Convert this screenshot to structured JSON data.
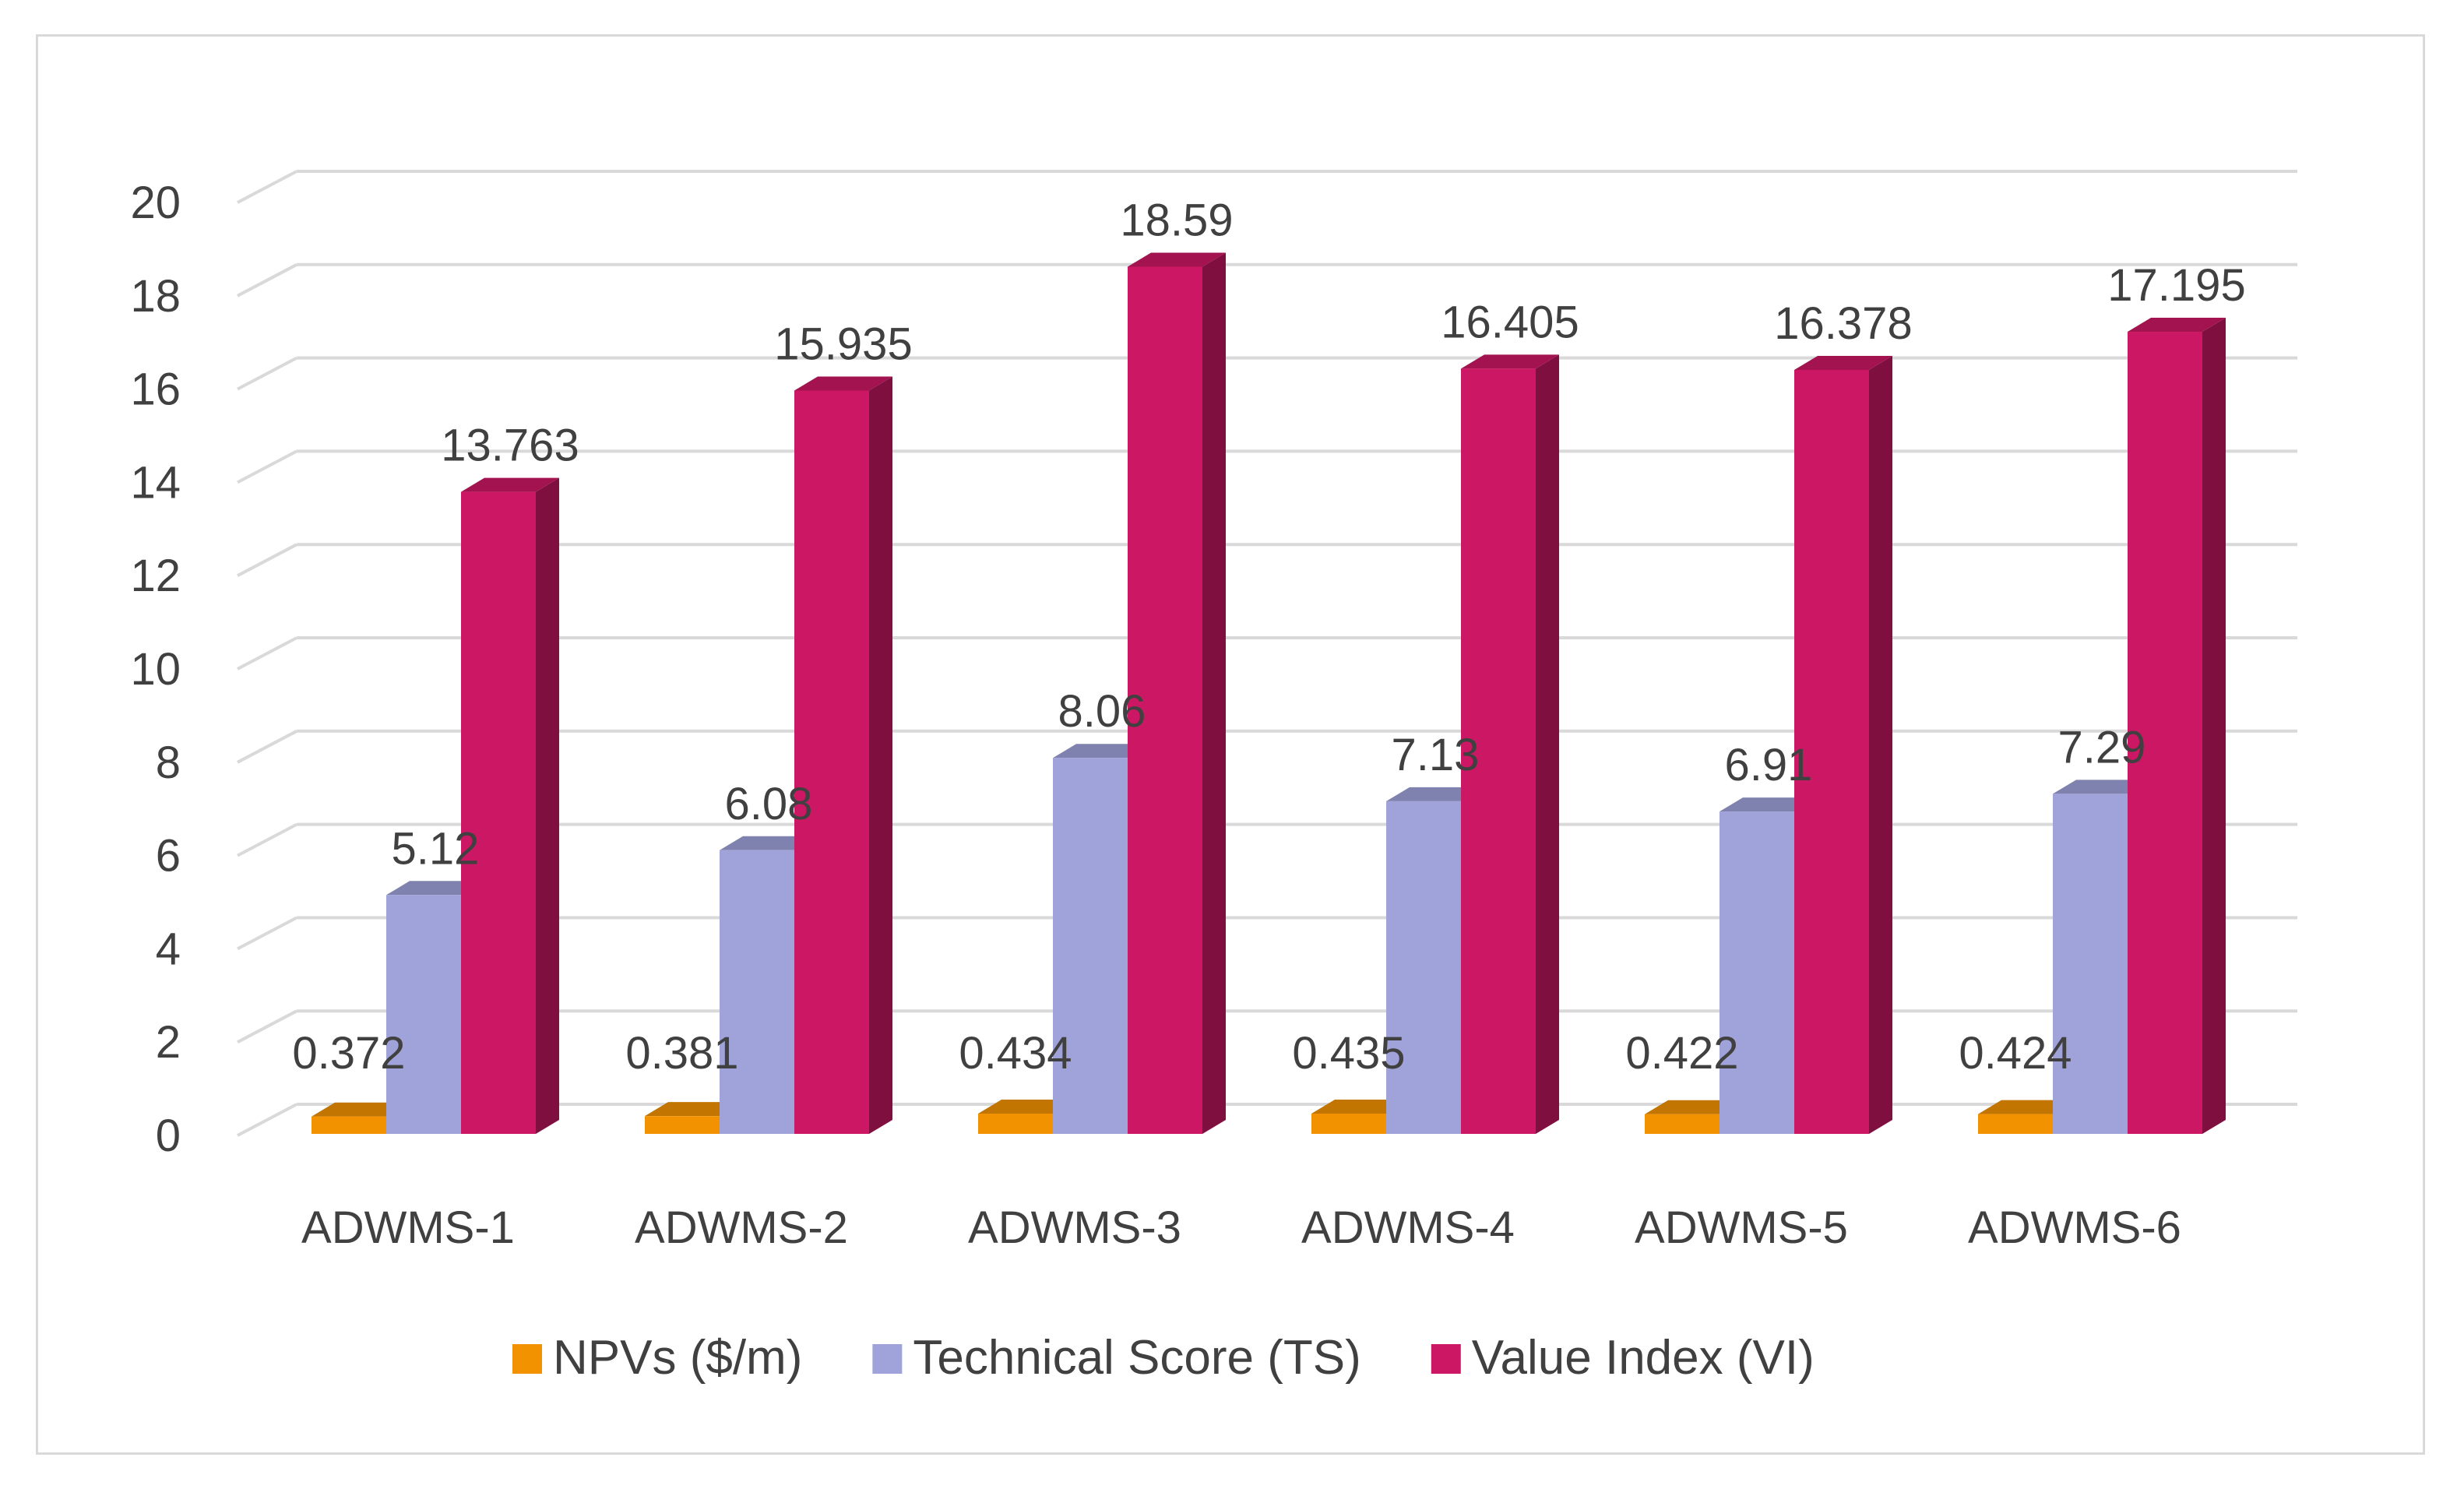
{
  "chart_data": {
    "type": "bar",
    "style": "3d-clustered-column",
    "title": "",
    "xlabel": "",
    "ylabel": "",
    "ylim": [
      0,
      20
    ],
    "ytick_step": 2,
    "grid": true,
    "legend_position": "bottom",
    "categories": [
      "ADWMS-1",
      "ADWMS-2",
      "ADWMS-3",
      "ADWMS-4",
      "ADWMS-5",
      "ADWMS-6"
    ],
    "yticks": [
      "0",
      "2",
      "4",
      "6",
      "8",
      "10",
      "12",
      "14",
      "16",
      "18",
      "20"
    ],
    "series": [
      {
        "name": "NPVs ($/m)",
        "color": "#f39200",
        "values": [
          0.372,
          0.381,
          0.434,
          0.435,
          0.422,
          0.424
        ],
        "labels": [
          "0.372",
          "0.381",
          "0.434",
          "0.435",
          "0.422",
          "0.424"
        ]
      },
      {
        "name": "Technical Score (TS)",
        "color": "#9fa3d9",
        "values": [
          5.12,
          6.08,
          8.06,
          7.13,
          6.91,
          7.29
        ],
        "labels": [
          "5.12",
          "6.08",
          "8.06",
          "7.13",
          "6.91",
          "7.29"
        ]
      },
      {
        "name": "Value Index (VI)",
        "color": "#cc1864",
        "values": [
          13.763,
          15.935,
          18.59,
          16.405,
          16.378,
          17.195
        ],
        "labels": [
          "13.763",
          "15.935",
          "18.59",
          "16.405",
          "16.378",
          "17.195"
        ]
      }
    ]
  }
}
